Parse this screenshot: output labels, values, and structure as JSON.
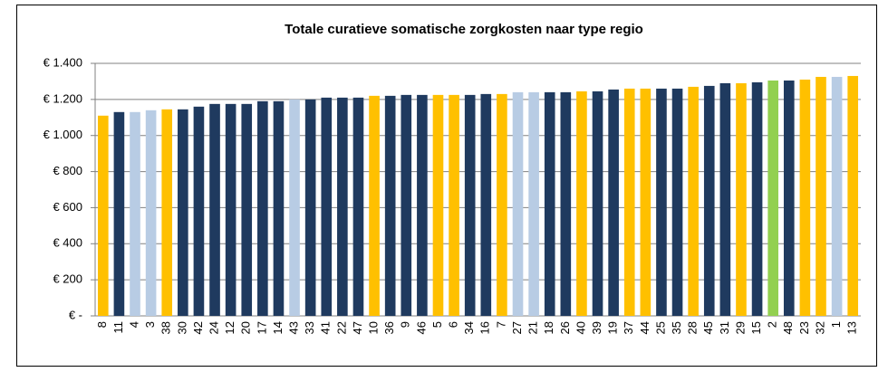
{
  "chart_data": {
    "type": "bar",
    "title": "Totale curatieve somatische zorgkosten naar type regio",
    "categories": [
      "8",
      "11",
      "4",
      "3",
      "38",
      "30",
      "42",
      "24",
      "12",
      "20",
      "17",
      "14",
      "43",
      "33",
      "41",
      "22",
      "47",
      "10",
      "36",
      "9",
      "46",
      "5",
      "6",
      "34",
      "16",
      "7",
      "27",
      "21",
      "18",
      "26",
      "40",
      "39",
      "19",
      "37",
      "44",
      "25",
      "35",
      "28",
      "45",
      "31",
      "29",
      "15",
      "2",
      "48",
      "23",
      "32",
      "1",
      "13"
    ],
    "values": [
      1110,
      1130,
      1130,
      1140,
      1145,
      1145,
      1160,
      1175,
      1175,
      1175,
      1190,
      1190,
      1200,
      1200,
      1210,
      1210,
      1210,
      1220,
      1220,
      1225,
      1225,
      1225,
      1225,
      1225,
      1230,
      1230,
      1240,
      1240,
      1240,
      1240,
      1245,
      1245,
      1255,
      1260,
      1260,
      1260,
      1260,
      1270,
      1275,
      1290,
      1290,
      1295,
      1305,
      1305,
      1310,
      1325,
      1325,
      1330
    ],
    "colors": [
      "#ffc000",
      "#1f3a5f",
      "#b8cce4",
      "#b8cce4",
      "#ffc000",
      "#1f3a5f",
      "#1f3a5f",
      "#1f3a5f",
      "#1f3a5f",
      "#1f3a5f",
      "#1f3a5f",
      "#1f3a5f",
      "#b8cce4",
      "#1f3a5f",
      "#1f3a5f",
      "#1f3a5f",
      "#1f3a5f",
      "#ffc000",
      "#1f3a5f",
      "#1f3a5f",
      "#1f3a5f",
      "#ffc000",
      "#ffc000",
      "#1f3a5f",
      "#1f3a5f",
      "#ffc000",
      "#b8cce4",
      "#b8cce4",
      "#1f3a5f",
      "#1f3a5f",
      "#ffc000",
      "#1f3a5f",
      "#1f3a5f",
      "#ffc000",
      "#ffc000",
      "#1f3a5f",
      "#1f3a5f",
      "#ffc000",
      "#1f3a5f",
      "#1f3a5f",
      "#ffc000",
      "#1f3a5f",
      "#92d050",
      "#1f3a5f",
      "#ffc000",
      "#ffc000",
      "#b8cce4",
      "#ffc000"
    ],
    "ylim": [
      0,
      1400
    ],
    "yticks": [
      {
        "value": 0,
        "label": "€ -"
      },
      {
        "value": 200,
        "label": "€ 200"
      },
      {
        "value": 400,
        "label": "€ 400"
      },
      {
        "value": 600,
        "label": "€ 600"
      },
      {
        "value": 800,
        "label": "€ 800"
      },
      {
        "value": 1000,
        "label": "€ 1.000"
      },
      {
        "value": 1200,
        "label": "€ 1.200"
      },
      {
        "value": 1400,
        "label": "€ 1.400"
      }
    ],
    "grid": true
  }
}
